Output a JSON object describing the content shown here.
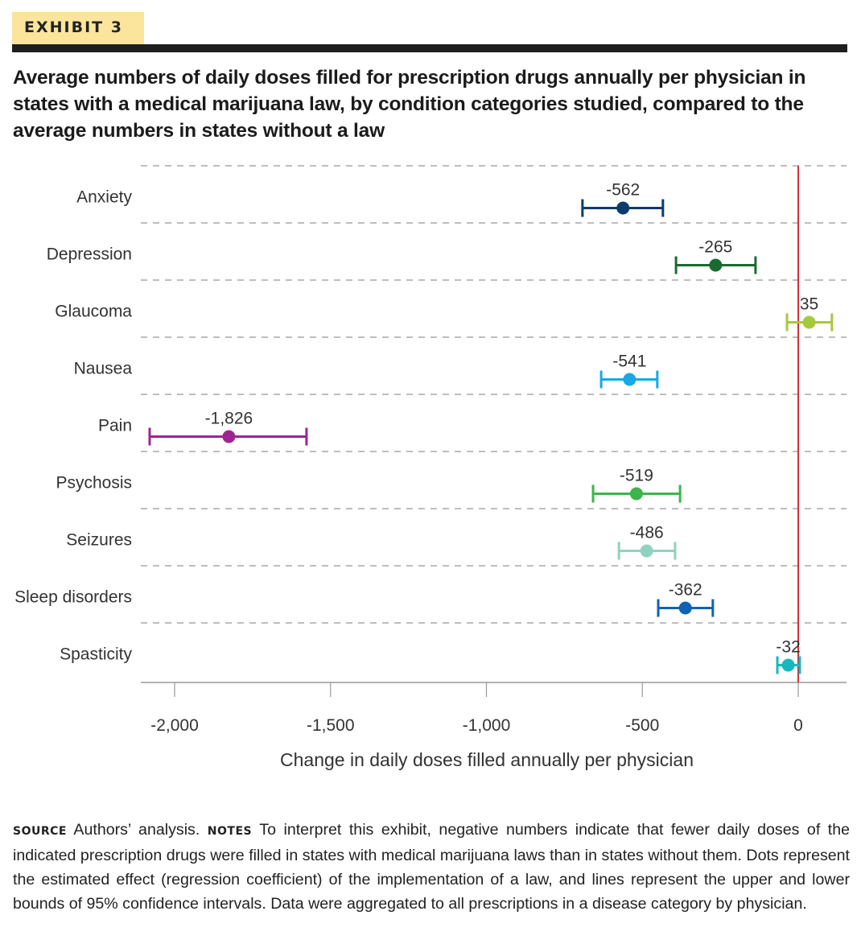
{
  "exhibit": {
    "label": "EXHIBIT 3"
  },
  "title": "Average numbers of daily doses filled for prescription drugs annually per physician in states with a medical marijuana law, by condition categories studied, compared to the average numbers in states without a law",
  "footer": {
    "source_label": "SOURCE",
    "source_text": "Authors’ analysis.",
    "notes_label": "NOTES",
    "notes_text": "To interpret this exhibit, negative numbers indicate that fewer daily doses of the indicated prescription drugs were filled in states with medical marijuana laws than in states without them. Dots represent the estimated effect (regression coefficient) of the implementation of a law, and lines represent the upper and lower bounds of 95% confidence intervals. Data were aggregated to all prescriptions in a disease category by physician."
  },
  "chart_data": {
    "type": "scatter",
    "subtype": "dot-and-whisker",
    "title": "Average numbers of daily doses filled for prescription drugs annually per physician in states with a medical marijuana law, by condition categories studied, compared to the average numbers in states without a law",
    "xlabel": "Change in daily doses filled annually per physician",
    "ylabel": "",
    "xlim": [
      -2100,
      150
    ],
    "xticks": [
      -2000,
      -1500,
      -1000,
      -500,
      0
    ],
    "xtick_labels": [
      "-2,000",
      "-1,500",
      "-1,000",
      "-500",
      "0"
    ],
    "reference_line": {
      "x": 0,
      "color": "#d62f36"
    },
    "grid": "horizontal dashed separators between categories",
    "categories": [
      "Anxiety",
      "Depression",
      "Glaucoma",
      "Nausea",
      "Pain",
      "Psychosis",
      "Seizures",
      "Sleep disorders",
      "Spasticity"
    ],
    "series": [
      {
        "name": "Anxiety",
        "estimate": -562,
        "label": "-562",
        "ci_lower": -692,
        "ci_upper": -434,
        "color": "#0d3b6e"
      },
      {
        "name": "Depression",
        "estimate": -265,
        "label": "-265",
        "ci_lower": -392,
        "ci_upper": -137,
        "color": "#1a6b30"
      },
      {
        "name": "Glaucoma",
        "estimate": 35,
        "label": "35",
        "ci_lower": -36,
        "ci_upper": 108,
        "color": "#a5c93d"
      },
      {
        "name": "Nausea",
        "estimate": -541,
        "label": "-541",
        "ci_lower": -632,
        "ci_upper": -452,
        "color": "#16a9e6"
      },
      {
        "name": "Pain",
        "estimate": -1826,
        "label": "-1,826",
        "ci_lower": -2080,
        "ci_upper": -1577,
        "color": "#9e2591"
      },
      {
        "name": "Psychosis",
        "estimate": -519,
        "label": "-519",
        "ci_lower": -658,
        "ci_upper": -379,
        "color": "#3db54a"
      },
      {
        "name": "Seizures",
        "estimate": -486,
        "label": "-486",
        "ci_lower": -575,
        "ci_upper": -395,
        "color": "#8fd2c0"
      },
      {
        "name": "Sleep disorders",
        "estimate": -362,
        "label": "-362",
        "ci_lower": -449,
        "ci_upper": -274,
        "color": "#0f63b0"
      },
      {
        "name": "Spasticity",
        "estimate": -32,
        "label": "-32",
        "ci_lower": -67,
        "ci_upper": 5,
        "color": "#17b8bc"
      }
    ]
  }
}
